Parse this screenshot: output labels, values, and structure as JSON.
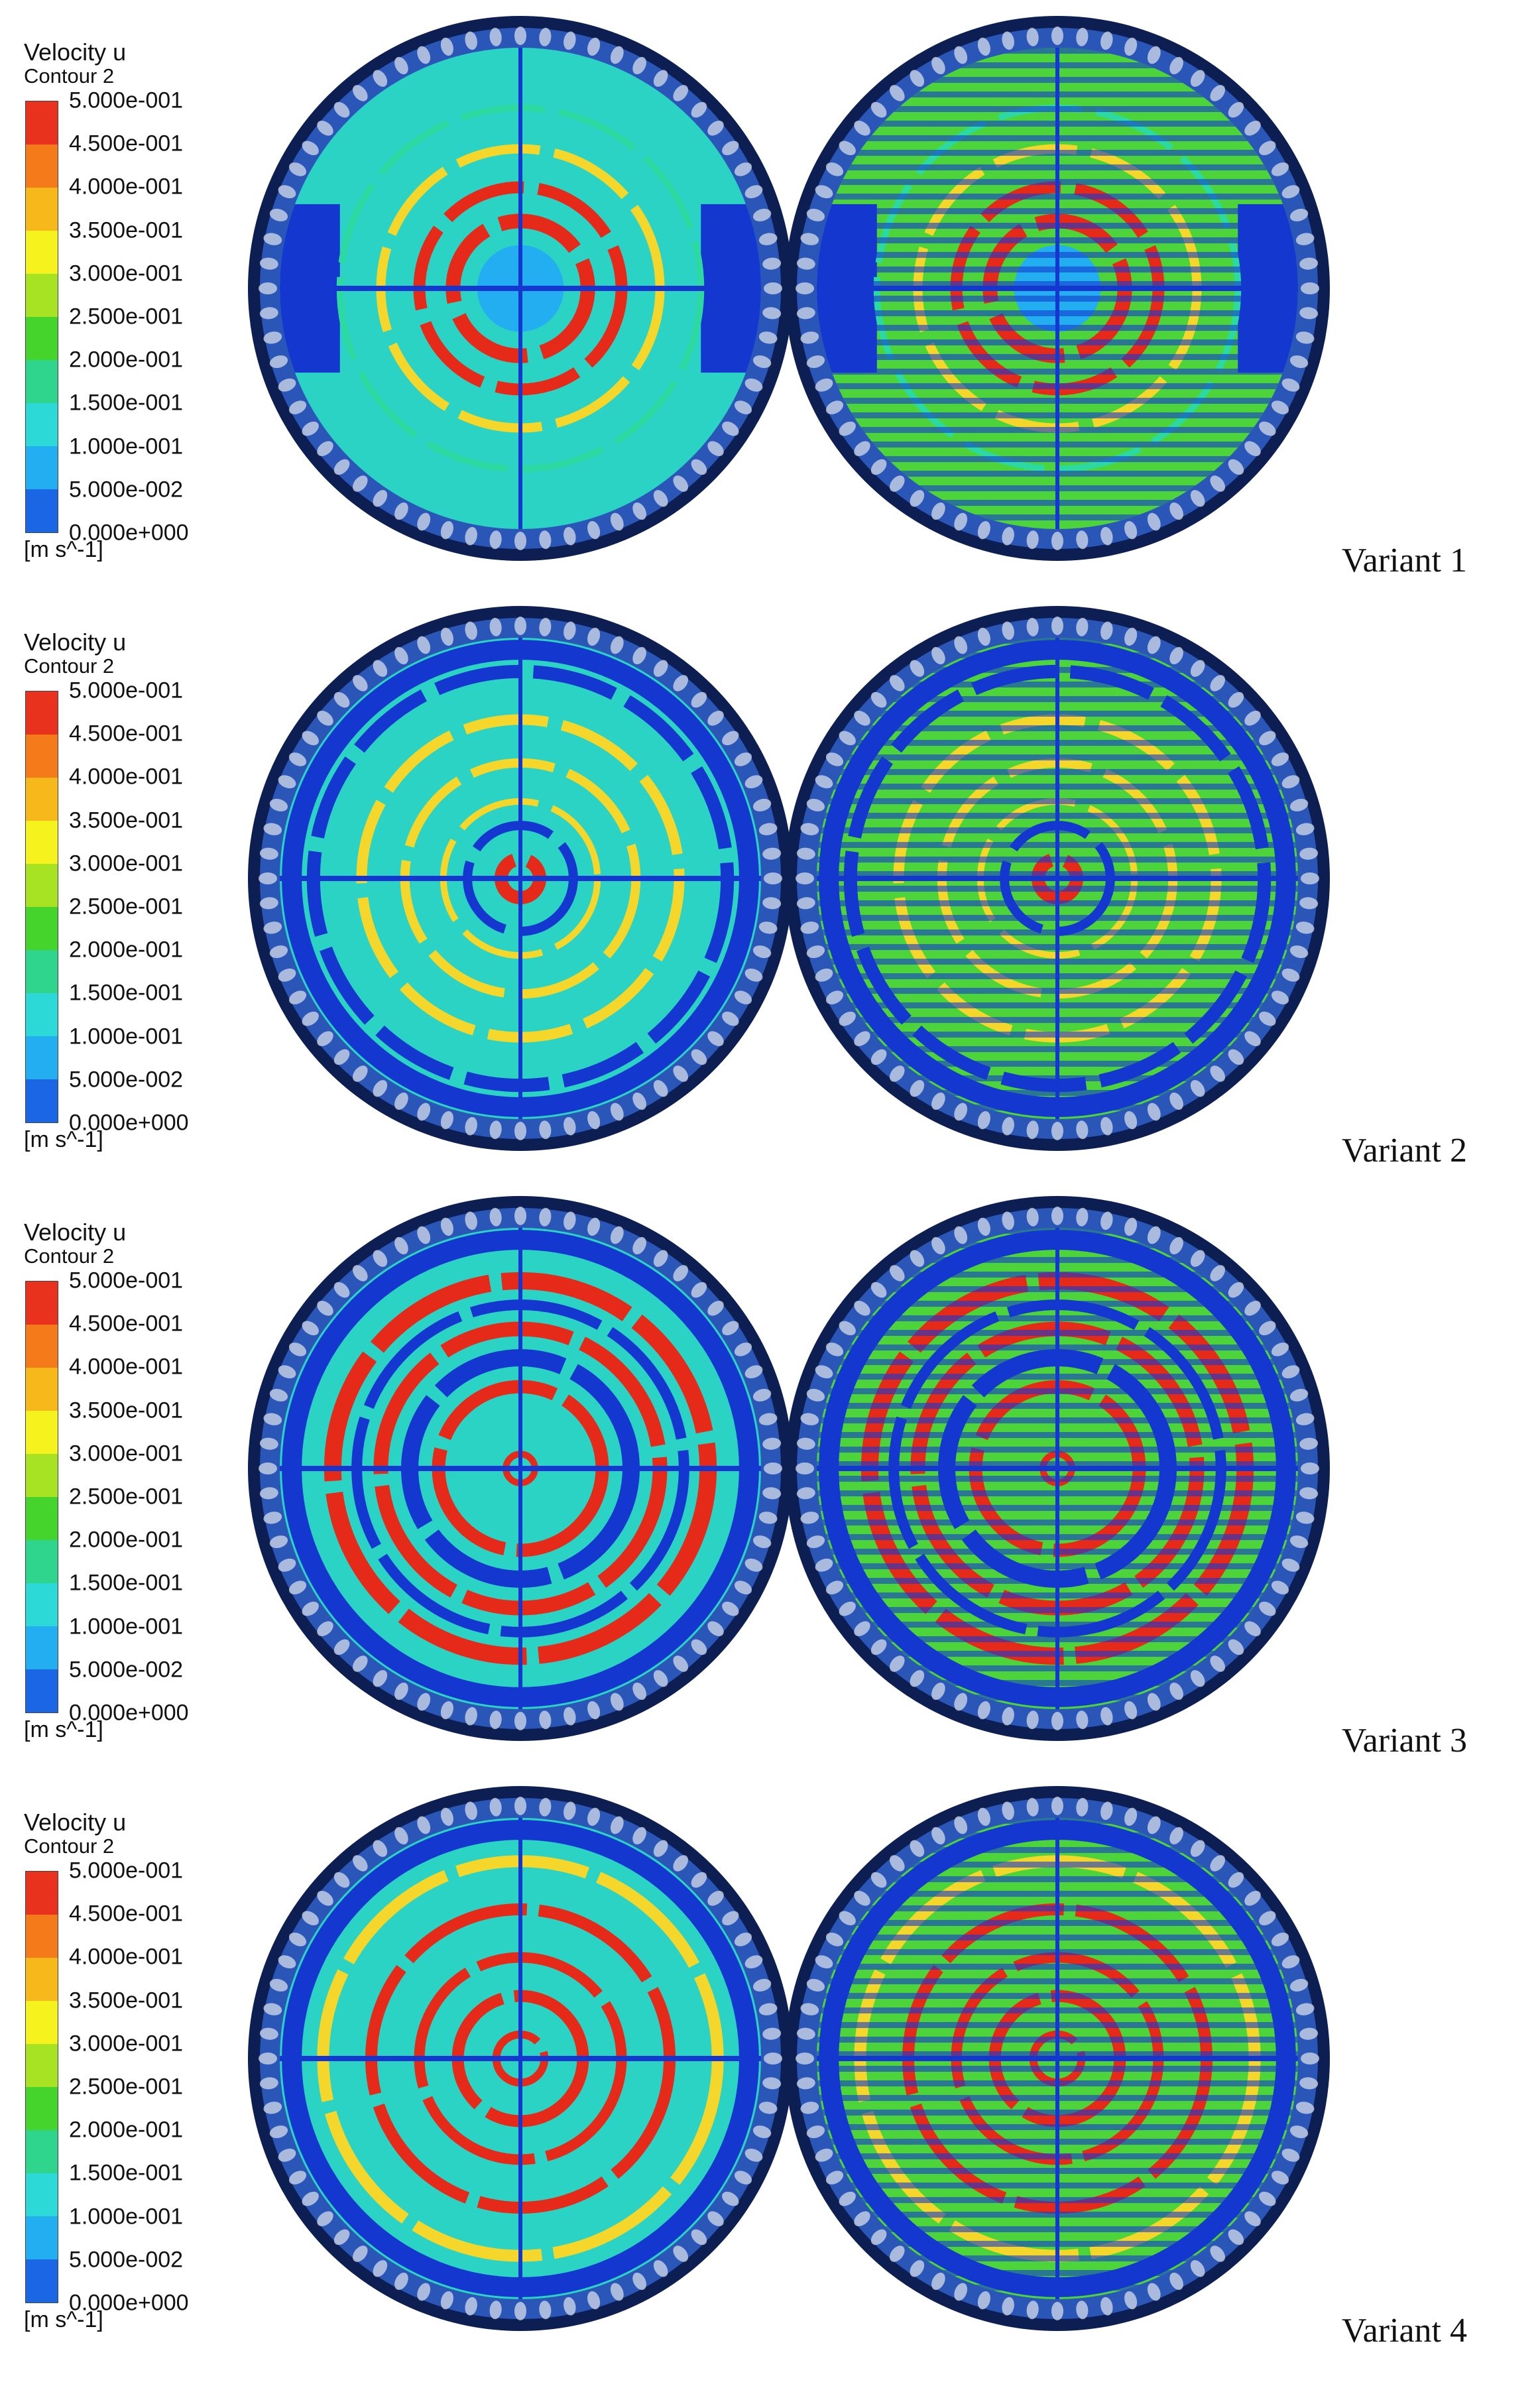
{
  "legend": {
    "title": "Velocity u",
    "subtitle": "Contour 2",
    "ticks": [
      "5.000e-001",
      "4.500e-001",
      "4.000e-001",
      "3.500e-001",
      "3.000e-001",
      "2.500e-001",
      "2.000e-001",
      "1.500e-001",
      "1.000e-001",
      "5.000e-002",
      "0.000e+000"
    ],
    "unit": "[m s^-1]",
    "colors": [
      "#e8321d",
      "#f57a1a",
      "#f6b81b",
      "#f6f21e",
      "#a7e323",
      "#45d42c",
      "#2fd58c",
      "#2cd9d6",
      "#22aef0",
      "#1a66e4",
      "#1530c8"
    ]
  },
  "panels": [
    {
      "label": "Variant 1",
      "pattern": "v1"
    },
    {
      "label": "Variant 2",
      "pattern": "v2"
    },
    {
      "label": "Variant 3",
      "pattern": "v3"
    },
    {
      "label": "Variant 4",
      "pattern": "v4"
    }
  ],
  "palette": {
    "ring_outer": "#0d1f52",
    "ring_inner": "#2a56b8",
    "field_base": "#2bd3c4",
    "low": "#1438cf",
    "mid": "#2cd9a0",
    "high": "#e52a1a",
    "warm": "#f5d62a",
    "cool": "#22aef0",
    "green": "#4cd43a"
  }
}
